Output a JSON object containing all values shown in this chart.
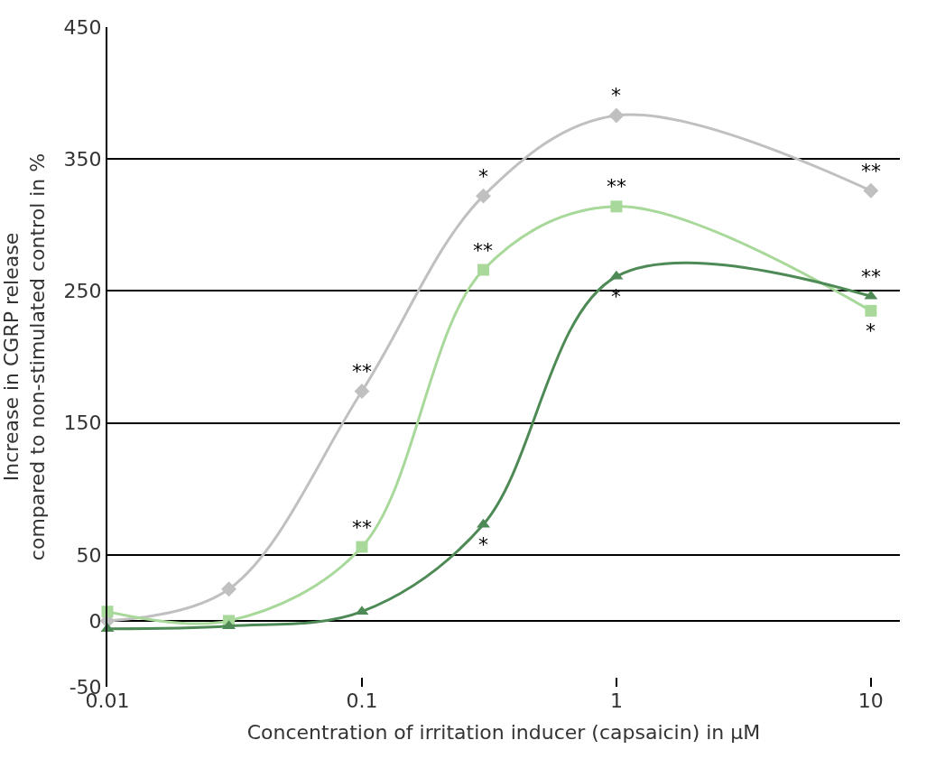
{
  "chart_data": {
    "type": "line",
    "xlabel": "Concentration of irritation inducer (capsaicin) in µM",
    "ylabel": "Increase in CGRP release\ncompared to non-stimulated control in %",
    "x": [
      0.01,
      0.03,
      0.1,
      0.3,
      1,
      10
    ],
    "log": "x",
    "xlim": [
      0.01,
      13
    ],
    "xticks": [
      0.01,
      0.1,
      1,
      10
    ],
    "ylim": [
      -50,
      450
    ],
    "yticks": [
      -50,
      0,
      50,
      150,
      250,
      350,
      450
    ],
    "grid": "y",
    "series": [
      {
        "color": "#c0c0c0",
        "marker": "diamond",
        "values": [
          0,
          24,
          174,
          322,
          383,
          326
        ]
      },
      {
        "color": "#a8d89a",
        "marker": "square",
        "values": [
          7,
          0,
          56,
          266,
          314,
          235
        ]
      },
      {
        "color": "#4e8a55",
        "marker": "triangle",
        "values": [
          -6,
          -4,
          7,
          73,
          261,
          246
        ]
      }
    ],
    "annotations": [
      {
        "text": "**",
        "x": 0.1,
        "y": 174
      },
      {
        "text": "*",
        "x": 0.3,
        "y": 322
      },
      {
        "text": "*",
        "x": 1,
        "y": 383
      },
      {
        "text": "**",
        "x": 10,
        "y": 326
      },
      {
        "text": "**",
        "x": 0.1,
        "y": 56
      },
      {
        "text": "**",
        "x": 0.3,
        "y": 266
      },
      {
        "text": "**",
        "x": 1,
        "y": 314
      },
      {
        "text": "*",
        "x": 10,
        "y": 235
      },
      {
        "text": "*",
        "x": 0.3,
        "y": 73
      },
      {
        "text": "*",
        "x": 1,
        "y": 261
      },
      {
        "text": "**",
        "x": 10,
        "y": 246
      }
    ]
  }
}
